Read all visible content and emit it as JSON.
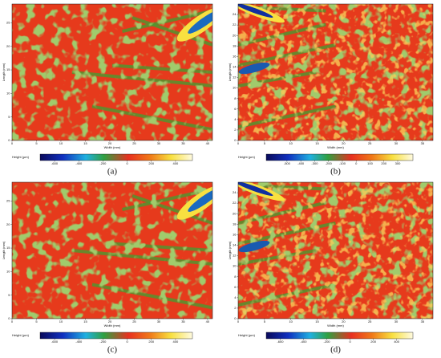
{
  "panels": [
    {
      "label": "(a)",
      "xlabel": "Width (mm)",
      "ylabel": "Length (mm)",
      "xlim": [
        0,
        41
      ],
      "xticks": [
        0,
        5,
        10,
        15,
        20,
        25,
        30,
        35,
        40
      ],
      "ylim": [
        0,
        29
      ],
      "yticks": [
        0,
        5,
        10,
        15,
        20,
        25
      ],
      "colorbar": {
        "label": "Height (µm)",
        "lim": [
          -720,
          540
        ],
        "ticks": [
          -600,
          -400,
          -200,
          0,
          200,
          400
        ]
      }
    },
    {
      "label": "(b)",
      "xlabel": "Width (mm)",
      "ylabel": "Length (mm)",
      "xlim": [
        0,
        37
      ],
      "xticks": [
        0,
        5,
        10,
        15,
        20,
        25,
        30,
        35
      ],
      "ylim": [
        0,
        26
      ],
      "yticks": [
        0,
        2,
        4,
        6,
        8,
        10,
        12,
        14,
        16,
        18,
        20,
        22,
        24
      ],
      "colorbar": {
        "label": "Height (µm)",
        "lim": [
          -650,
          410
        ],
        "ticks": [
          -500,
          -400,
          -300,
          -200,
          -100,
          0,
          100,
          200,
          300
        ]
      }
    },
    {
      "label": "(c)",
      "xlabel": "Width (mm)",
      "ylabel": "Length (mm)",
      "xlim": [
        0,
        41
      ],
      "xticks": [
        0,
        5,
        10,
        15,
        20,
        25,
        30,
        35,
        40
      ],
      "ylim": [
        0,
        29
      ],
      "yticks": [
        0,
        5,
        10,
        15,
        20,
        25
      ],
      "colorbar": {
        "label": "Height (µm)",
        "lim": [
          -720,
          540
        ],
        "ticks": [
          -600,
          -400,
          -200,
          0,
          200,
          400
        ]
      }
    },
    {
      "label": "(d)",
      "xlabel": "Width (mm)",
      "ylabel": "Length (mm)",
      "xlim": [
        0,
        37
      ],
      "xticks": [
        0,
        5,
        10,
        15,
        20,
        25,
        30,
        35
      ],
      "ylim": [
        0,
        26
      ],
      "yticks": [
        0,
        2,
        4,
        6,
        8,
        10,
        12,
        14,
        16,
        18,
        20,
        22,
        24
      ],
      "colorbar": {
        "label": "Height (µm)",
        "lim": [
          -720,
          540
        ],
        "ticks": [
          -600,
          -400,
          -200,
          0,
          200,
          400
        ]
      }
    }
  ]
}
